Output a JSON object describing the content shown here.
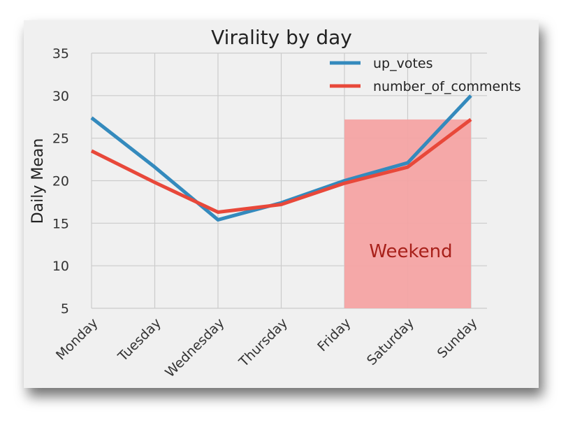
{
  "chart_data": {
    "type": "line",
    "title": "Virality by day",
    "xlabel": "",
    "ylabel": "Daily Mean",
    "categories": [
      "Monday",
      "Tuesday",
      "Wednesday",
      "Thursday",
      "Friday",
      "Saturday",
      "Sunday"
    ],
    "ylim": [
      5,
      35
    ],
    "yticks": [
      5,
      10,
      15,
      20,
      25,
      30,
      35
    ],
    "grid": true,
    "legend_position": "top-right",
    "series": [
      {
        "name": "up_votes",
        "color": "#348ABD",
        "values": [
          27.4,
          21.6,
          15.4,
          17.4,
          20.0,
          22.1,
          30.0
        ]
      },
      {
        "name": "number_of_comments",
        "color": "#E8483A",
        "values": [
          23.5,
          19.8,
          16.3,
          17.2,
          19.7,
          21.6,
          27.2
        ]
      }
    ],
    "annotations": [
      {
        "type": "shaded-region",
        "label": "Weekend",
        "x_start": "Friday",
        "x_end": "Sunday",
        "color": "#F4A3A3",
        "text_color": "#A8201A"
      }
    ]
  },
  "colors": {
    "plot_bg": "#F0F0F0",
    "grid": "#CBCBCB"
  }
}
